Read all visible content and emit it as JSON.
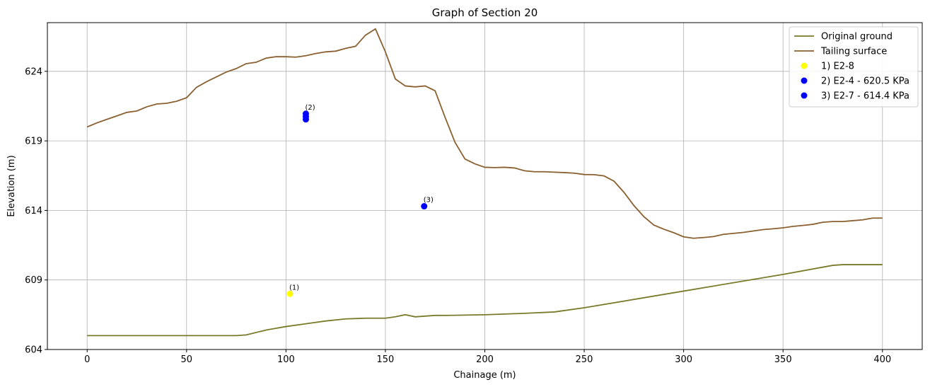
{
  "chart_data": {
    "type": "line",
    "title": "Graph of Section 20",
    "xlabel": "Chainage (m)",
    "ylabel": "Elevation (m)",
    "xlim": [
      -20,
      420
    ],
    "ylim": [
      604,
      627.5
    ],
    "xticks": [
      0,
      50,
      100,
      150,
      200,
      250,
      300,
      350,
      400
    ],
    "yticks": [
      604,
      609,
      614,
      619,
      624
    ],
    "grid": true,
    "legend_position": "top-right",
    "series": [
      {
        "name": "Original ground",
        "color": "#7a7a2a",
        "x": [
          0,
          10,
          20,
          30,
          40,
          50,
          60,
          70,
          75,
          80,
          90,
          100,
          110,
          120,
          130,
          140,
          150,
          155,
          160,
          165,
          170,
          175,
          180,
          200,
          220,
          235,
          240,
          250,
          300,
          350,
          375,
          380,
          390,
          400
        ],
        "y": [
          605.0,
          605.0,
          605.0,
          605.0,
          605.0,
          605.0,
          605.0,
          605.0,
          605.0,
          605.05,
          605.4,
          605.65,
          605.85,
          606.05,
          606.2,
          606.25,
          606.25,
          606.35,
          606.5,
          606.35,
          606.4,
          606.45,
          606.45,
          606.5,
          606.6,
          606.7,
          606.8,
          607.0,
          608.2,
          609.4,
          610.05,
          610.1,
          610.1,
          610.1
        ]
      },
      {
        "name": "Tailing surface",
        "color": "#8a6030",
        "x": [
          0,
          5,
          10,
          15,
          20,
          25,
          30,
          35,
          40,
          45,
          50,
          55,
          60,
          65,
          70,
          75,
          80,
          85,
          90,
          95,
          100,
          105,
          110,
          115,
          120,
          125,
          130,
          135,
          140,
          145,
          150,
          155,
          160,
          165,
          170,
          175,
          180,
          185,
          190,
          195,
          200,
          205,
          210,
          215,
          220,
          225,
          230,
          235,
          240,
          245,
          250,
          255,
          260,
          265,
          270,
          275,
          280,
          285,
          290,
          295,
          300,
          305,
          310,
          315,
          320,
          325,
          330,
          335,
          340,
          345,
          350,
          355,
          360,
          365,
          370,
          375,
          380,
          385,
          390,
          395,
          400
        ],
        "y": [
          620.0,
          620.3,
          620.55,
          620.8,
          621.05,
          621.15,
          621.45,
          621.65,
          621.7,
          621.85,
          622.1,
          622.85,
          623.25,
          623.6,
          623.95,
          624.2,
          624.55,
          624.65,
          624.95,
          625.05,
          625.05,
          625.02,
          625.12,
          625.28,
          625.4,
          625.45,
          625.65,
          625.8,
          626.6,
          627.05,
          625.4,
          623.45,
          622.95,
          622.88,
          622.95,
          622.6,
          620.7,
          618.9,
          617.7,
          617.35,
          617.1,
          617.08,
          617.1,
          617.05,
          616.85,
          616.78,
          616.78,
          616.75,
          616.72,
          616.68,
          616.58,
          616.57,
          616.48,
          616.1,
          615.3,
          614.35,
          613.55,
          612.95,
          612.65,
          612.4,
          612.1,
          612.0,
          612.05,
          612.12,
          612.28,
          612.35,
          612.42,
          612.52,
          612.62,
          612.68,
          612.75,
          612.85,
          612.92,
          613.0,
          613.15,
          613.2,
          613.2,
          613.26,
          613.32,
          613.45,
          613.45
        ]
      },
      {
        "name": "1) E2-8",
        "color": "#ffff00",
        "type": "scatter",
        "x": [
          102
        ],
        "y": [
          608.0
        ],
        "annotation": "(1)"
      },
      {
        "name": "2) E2-4 - 620.5 KPa",
        "color": "#0000ff",
        "type": "scatter",
        "x": [
          110,
          110,
          110
        ],
        "y": [
          620.95,
          620.75,
          620.55
        ],
        "annotation": "(2)"
      },
      {
        "name": "3) E2-7 - 614.4 KPa",
        "color": "#0000ff",
        "type": "scatter",
        "x": [
          169.5
        ],
        "y": [
          614.3
        ],
        "annotation": "(3)"
      }
    ]
  }
}
